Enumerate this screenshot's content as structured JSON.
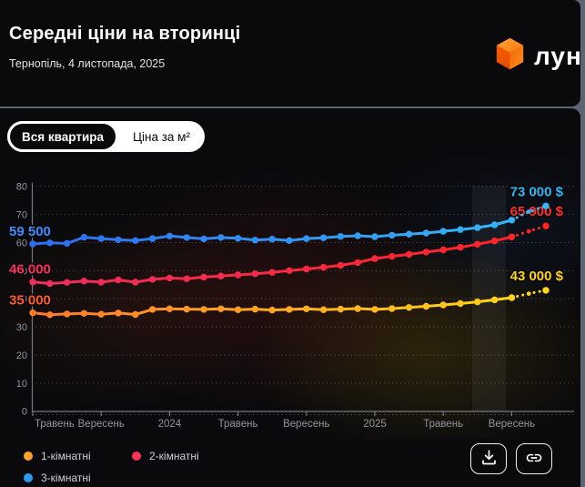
{
  "header": {
    "title": "Середні ціни на вторинці",
    "subtitle": "Тернопіль, 4 листопада, 2025",
    "logo_text": "лун",
    "logo_color": "#ff6b00"
  },
  "tabs": [
    {
      "label": "Вся квартира",
      "selected": true
    },
    {
      "label": "Ціна за м²",
      "selected": false
    }
  ],
  "chart_data": {
    "type": "line",
    "title": "Середні ціни на вторинці, Тернопіль",
    "y_unit": "тис. $",
    "ylim": [
      0,
      80
    ],
    "y_ticks": [
      0,
      10,
      20,
      30,
      40,
      50,
      60,
      70,
      80
    ],
    "grid": true,
    "x_unit": "month",
    "x_months": [
      "2023-05",
      "2023-06",
      "2023-07",
      "2023-08",
      "2023-09",
      "2023-10",
      "2023-11",
      "2023-12",
      "2024-01",
      "2024-02",
      "2024-03",
      "2024-04",
      "2024-05",
      "2024-06",
      "2024-07",
      "2024-08",
      "2024-09",
      "2024-10",
      "2024-11",
      "2024-12",
      "2025-01",
      "2025-02",
      "2025-03",
      "2025-04",
      "2025-05",
      "2025-06",
      "2025-07",
      "2025-08",
      "2025-09",
      "2025-10",
      "2025-11"
    ],
    "x_tick_labels": [
      "Травень",
      "Вересень",
      "2024",
      "Травень",
      "Вересень",
      "2025",
      "Травень",
      "Вересень"
    ],
    "x_tick_indices": [
      0,
      4,
      8,
      12,
      16,
      20,
      24,
      28
    ],
    "dotted_tail_points": 2,
    "legend_position": "bottom",
    "series": [
      {
        "name": "1-кімнатні",
        "color_start": "#ff7a28",
        "color_end": "#ffd919",
        "start_label": "35 000",
        "start_label_color": "#ff5a28",
        "end_label": "43 000 $",
        "end_label_color": "#ffd21c",
        "values": [
          35.0,
          34.3,
          34.6,
          34.8,
          34.5,
          34.9,
          34.4,
          36.2,
          36.4,
          36.3,
          36.2,
          36.4,
          36.1,
          36.3,
          36.0,
          36.2,
          36.4,
          36.1,
          36.3,
          36.5,
          36.2,
          36.5,
          36.9,
          37.3,
          37.8,
          38.3,
          38.9,
          39.6,
          40.4,
          41.8,
          43.0
        ]
      },
      {
        "name": "2-кімнатні",
        "color_start": "#f02e62",
        "color_end": "#ff2424",
        "start_label": "46 000",
        "start_label_color": "#fb2f5f",
        "end_label": "65 900 $",
        "end_label_color": "#ff2e2e",
        "values": [
          46.0,
          45.4,
          45.8,
          46.3,
          45.9,
          46.7,
          45.9,
          46.9,
          47.4,
          47.1,
          47.7,
          48.1,
          48.5,
          48.9,
          49.4,
          50.0,
          50.6,
          51.2,
          51.9,
          52.9,
          54.3,
          55.1,
          55.8,
          56.6,
          57.4,
          58.3,
          59.4,
          60.6,
          62.0,
          64.0,
          65.9
        ]
      },
      {
        "name": "3-кімнатні",
        "color_start": "#2e6df0",
        "color_end": "#35b9f7",
        "start_label": "59 500",
        "start_label_color": "#3f8dff",
        "end_label": "73 000 $",
        "end_label_color": "#2fb6f8",
        "values": [
          59.5,
          59.9,
          59.7,
          61.9,
          61.4,
          61.0,
          60.7,
          61.4,
          62.3,
          61.8,
          61.3,
          61.8,
          61.5,
          60.9,
          61.2,
          60.7,
          61.4,
          61.7,
          62.2,
          62.4,
          62.1,
          62.6,
          63.0,
          63.4,
          64.0,
          64.6,
          65.3,
          66.3,
          68.0,
          71.0,
          73.0
        ]
      }
    ],
    "legend": [
      {
        "label": "1-кімнатні",
        "color": "#ffa226"
      },
      {
        "label": "2-кімнатні",
        "color": "#fb3158"
      },
      {
        "label": "3-кімнатні",
        "color": "#2b9cf4"
      }
    ]
  },
  "actions": {
    "download_label": "download",
    "link_label": "copy-link"
  },
  "colors": {
    "card_bg": "#0a0a0c",
    "page_edge": "#5c6570",
    "axis": "#747981",
    "tick_text": "#8f959d",
    "legend_text": "#ccd1d8"
  }
}
